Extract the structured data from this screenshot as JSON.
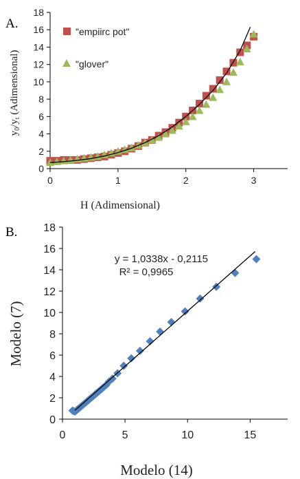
{
  "chart_data": [
    {
      "panel_label": "A.",
      "type": "scatter",
      "xlabel": "H (Adimensional)",
      "ylabel_main": "y",
      "ylabel_sub0": "0",
      "ylabel_slash": "/y",
      "ylabel_subt": "t",
      "ylabel_rest": " (Adimensional)",
      "xlim": [
        0,
        3.5
      ],
      "ylim": [
        0,
        18
      ],
      "xticks": [
        0,
        1,
        2,
        3
      ],
      "yticks": [
        0,
        2,
        4,
        6,
        8,
        10,
        12,
        14,
        16,
        18
      ],
      "legend_position": "top-left",
      "colors": {
        "empiirc": "#c0504d",
        "glover": "#9bbb59",
        "fit": "#000000"
      },
      "series": [
        {
          "name": "\"empiirc pot\"",
          "marker": "square",
          "x": [
            0.0,
            0.1,
            0.2,
            0.3,
            0.4,
            0.5,
            0.6,
            0.7,
            0.8,
            0.9,
            1.0,
            1.1,
            1.2,
            1.3,
            1.4,
            1.5,
            1.6,
            1.7,
            1.8,
            1.9,
            2.0,
            2.1,
            2.2,
            2.3,
            2.4,
            2.5,
            2.6,
            2.7,
            2.8,
            2.9,
            3.0
          ],
          "y": [
            0.9,
            0.9,
            1.0,
            1.0,
            1.0,
            1.1,
            1.2,
            1.3,
            1.4,
            1.6,
            1.8,
            2.0,
            2.3,
            2.6,
            3.0,
            3.3,
            3.8,
            4.2,
            4.7,
            5.3,
            6.0,
            6.7,
            7.5,
            8.4,
            9.2,
            10.2,
            11.2,
            12.2,
            13.4,
            14.2,
            15.2
          ]
        },
        {
          "name": "\"glover\"",
          "marker": "triangle",
          "x": [
            0.0,
            0.1,
            0.2,
            0.3,
            0.4,
            0.5,
            0.6,
            0.7,
            0.8,
            0.9,
            1.0,
            1.1,
            1.2,
            1.3,
            1.4,
            1.5,
            1.6,
            1.7,
            1.8,
            1.9,
            2.0,
            2.1,
            2.2,
            2.3,
            2.4,
            2.5,
            2.6,
            2.7,
            2.8,
            2.9,
            3.0
          ],
          "y": [
            0.7,
            0.8,
            0.9,
            1.0,
            1.1,
            1.2,
            1.3,
            1.4,
            1.6,
            1.8,
            2.0,
            2.2,
            2.4,
            2.7,
            3.0,
            3.3,
            3.6,
            4.0,
            4.4,
            4.9,
            5.4,
            6.0,
            6.7,
            7.4,
            8.2,
            9.1,
            10.0,
            11.1,
            12.3,
            13.8,
            15.5
          ]
        },
        {
          "type": "line",
          "x": [
            0.0,
            0.2,
            0.4,
            0.6,
            0.8,
            1.0,
            1.2,
            1.4,
            1.6,
            1.8,
            2.0,
            2.2,
            2.4,
            2.6,
            2.8,
            2.95
          ],
          "y": [
            0.7,
            0.8,
            0.95,
            1.15,
            1.45,
            1.85,
            2.35,
            3.0,
            3.8,
            4.8,
            6.0,
            7.4,
            9.0,
            11.0,
            13.6,
            16.3
          ]
        }
      ]
    },
    {
      "panel_label": "B.",
      "type": "scatter",
      "xlabel": "Modelo (14)",
      "ylabel": "Modelo (7)",
      "xlim": [
        0,
        18
      ],
      "ylim": [
        0,
        18
      ],
      "xticks": [
        0,
        5,
        10,
        15
      ],
      "yticks": [
        0,
        2,
        4,
        6,
        8,
        10,
        12,
        14,
        16,
        18
      ],
      "equation": "y = 1,0338x - 0,2115",
      "r2": "R² = 0,9965",
      "colors": {
        "points": "#4f81bd",
        "fit": "#000000"
      },
      "series": [
        {
          "marker": "diamond",
          "x": [
            0.8,
            0.9,
            1.0,
            1.1,
            1.2,
            1.3,
            1.4,
            1.5,
            1.6,
            1.7,
            1.8,
            1.9,
            2.0,
            2.1,
            2.2,
            2.3,
            2.4,
            2.5,
            2.6,
            2.7,
            2.8,
            2.9,
            3.0,
            3.1,
            3.2,
            3.3,
            3.5,
            3.7,
            4.0,
            4.4,
            4.9,
            5.5,
            6.2,
            7.0,
            7.8,
            8.7,
            9.8,
            11.0,
            12.3,
            13.8,
            15.5
          ],
          "y": [
            0.8,
            0.75,
            0.7,
            0.8,
            0.9,
            1.0,
            1.1,
            1.2,
            1.3,
            1.4,
            1.5,
            1.6,
            1.7,
            1.8,
            1.9,
            2.0,
            2.1,
            2.2,
            2.3,
            2.4,
            2.5,
            2.6,
            2.7,
            2.8,
            2.9,
            3.0,
            3.2,
            3.5,
            3.8,
            4.3,
            5.0,
            5.7,
            6.4,
            7.3,
            8.2,
            9.1,
            10.1,
            11.3,
            12.4,
            13.7,
            15.0
          ]
        },
        {
          "type": "line",
          "x": [
            1.0,
            15.4
          ],
          "y": [
            0.82,
            15.71
          ]
        }
      ]
    }
  ]
}
